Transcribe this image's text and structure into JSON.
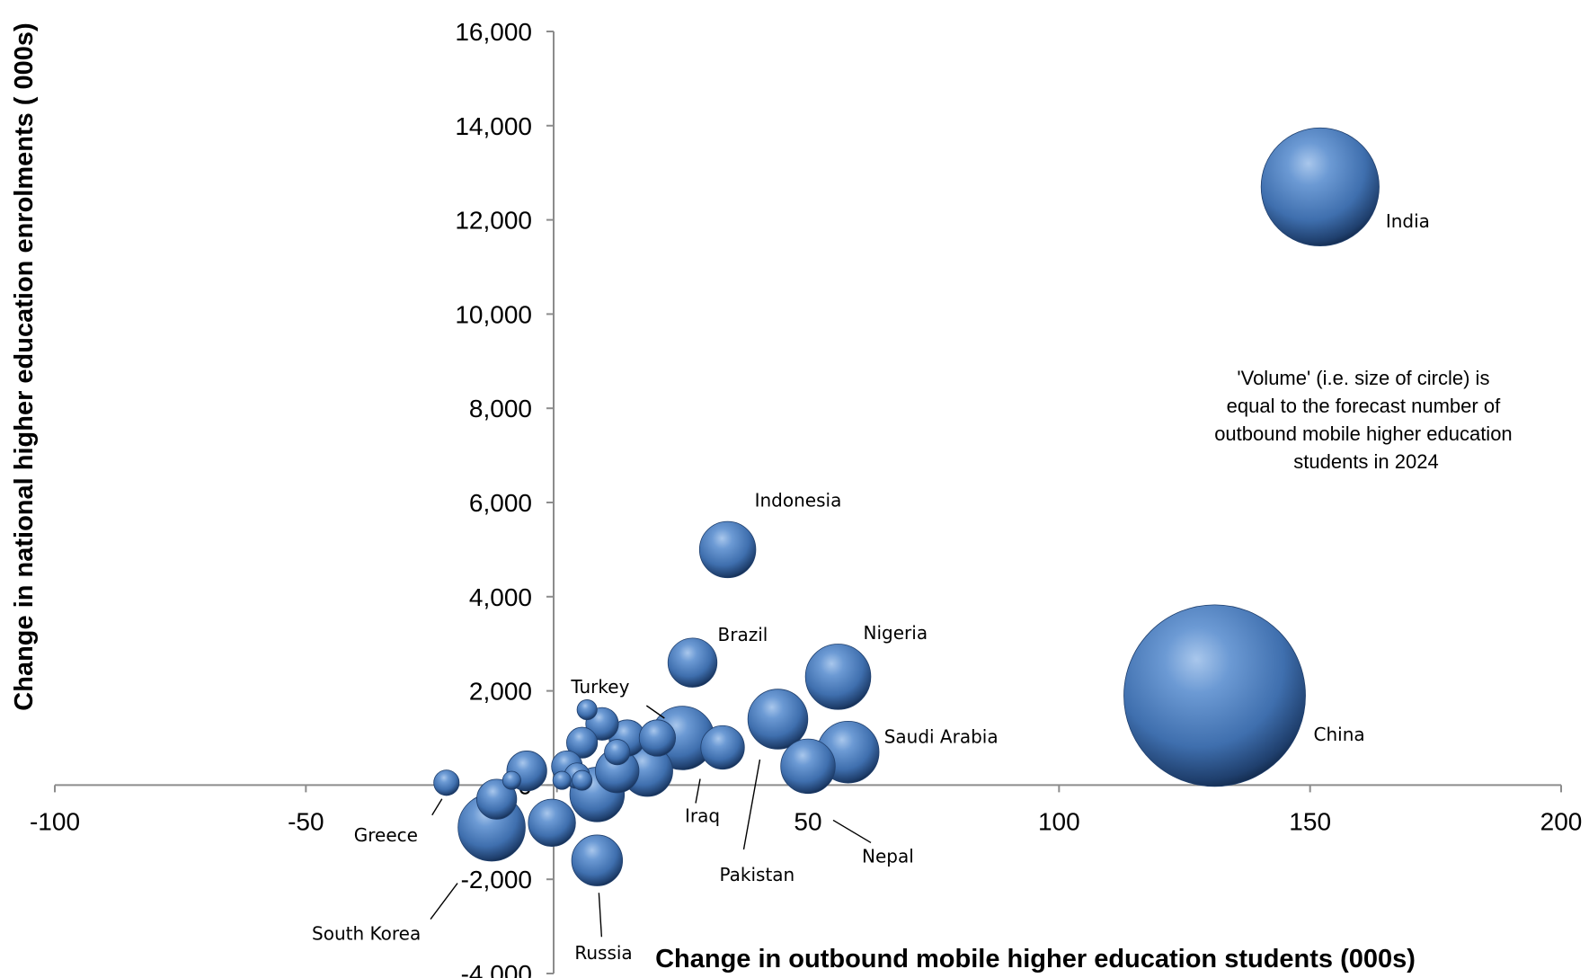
{
  "chart_data": {
    "type": "bubble",
    "xlabel": "Change in outbound mobile higher education students (000s)",
    "ylabel": "Change in national higher education enrolments ( 000s)",
    "xlim": [
      -100,
      200
    ],
    "ylim": [
      -4000,
      16000
    ],
    "x_ticks": [
      -100,
      -50,
      0,
      50,
      100,
      150,
      200
    ],
    "x_tick_labels": [
      "-100",
      "-50",
      "0",
      "50",
      "100",
      "150",
      "200"
    ],
    "y_ticks": [
      -4000,
      -2000,
      0,
      2000,
      4000,
      6000,
      8000,
      10000,
      12000,
      14000,
      16000
    ],
    "y_tick_labels": [
      "-4,000",
      "-2,000",
      "0",
      "2,000",
      "4,000",
      "6,000",
      "8,000",
      "10,000",
      "12,000",
      "14,000",
      "16,000"
    ],
    "annotation_lines": [
      "'Volume' (i.e. size of circle) is",
      "equal to the forecast number of",
      "outbound mobile higher education",
      "students in 2024"
    ],
    "points": [
      {
        "label": "India",
        "x": 152,
        "y": 12700,
        "size": 65
      },
      {
        "label": "China",
        "x": 131,
        "y": 1900,
        "size": 100
      },
      {
        "label": "Indonesia",
        "x": 34,
        "y": 5000,
        "size": 31
      },
      {
        "label": "Nigeria",
        "x": 56,
        "y": 2300,
        "size": 36
      },
      {
        "label": "Saudi Arabia",
        "x": 58,
        "y": 700,
        "size": 34
      },
      {
        "label": "Brazil",
        "x": 27,
        "y": 2600,
        "size": 27
      },
      {
        "label": "Turkey",
        "x": 25,
        "y": 1000,
        "size": 35
      },
      {
        "label": "Iraq",
        "x": 33,
        "y": 800,
        "size": 24
      },
      {
        "label": "Pakistan",
        "x": 44,
        "y": 1400,
        "size": 33
      },
      {
        "label": "Nepal",
        "x": 50,
        "y": 400,
        "size": 30
      },
      {
        "label": "Russia",
        "x": 8,
        "y": -1600,
        "size": 28
      },
      {
        "label": "Greece",
        "x": -22,
        "y": 50,
        "size": 14
      },
      {
        "label": "South Korea",
        "x": -13,
        "y": -900,
        "size": 37
      },
      {
        "label": "",
        "x": -1,
        "y": -800,
        "size": 26
      },
      {
        "label": "",
        "x": -6,
        "y": 300,
        "size": 22
      },
      {
        "label": "",
        "x": -12,
        "y": -300,
        "size": 22
      },
      {
        "label": "",
        "x": 9,
        "y": 1300,
        "size": 18
      },
      {
        "label": "",
        "x": 6,
        "y": 1600,
        "size": 11
      },
      {
        "label": "",
        "x": 5,
        "y": 900,
        "size": 17
      },
      {
        "label": "",
        "x": 14,
        "y": 1000,
        "size": 20
      },
      {
        "label": "",
        "x": 20,
        "y": 1000,
        "size": 20
      },
      {
        "label": "",
        "x": 18,
        "y": 300,
        "size": 28
      },
      {
        "label": "",
        "x": 12,
        "y": 300,
        "size": 24
      },
      {
        "label": "",
        "x": 2,
        "y": 400,
        "size": 17
      },
      {
        "label": "",
        "x": 8,
        "y": -200,
        "size": 30
      },
      {
        "label": "",
        "x": 4,
        "y": 200,
        "size": 14
      },
      {
        "label": "",
        "x": 5,
        "y": 100,
        "size": 11
      },
      {
        "label": "",
        "x": 1,
        "y": 100,
        "size": 10
      },
      {
        "label": "",
        "x": -9,
        "y": 100,
        "size": 10
      },
      {
        "label": "",
        "x": 12,
        "y": 700,
        "size": 14
      }
    ]
  }
}
